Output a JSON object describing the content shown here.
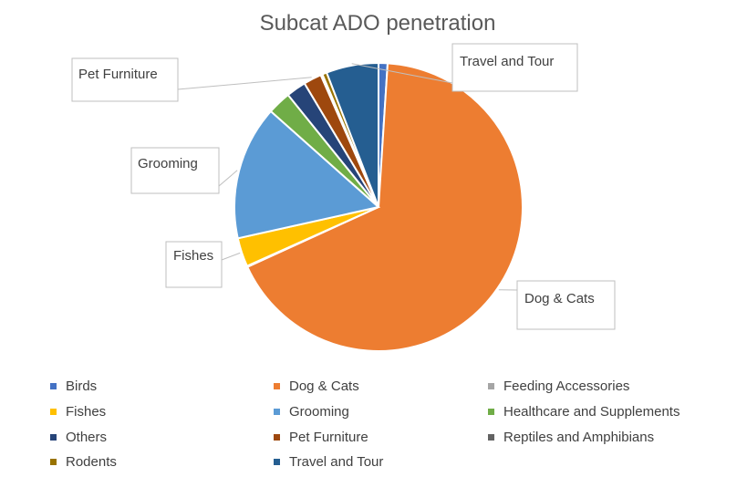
{
  "chart_data": {
    "type": "pie",
    "title": "Subcat ADO penetration",
    "slices": [
      {
        "label": "Birds",
        "value": 1.0,
        "color": "#4472C4"
      },
      {
        "label": "Dog & Cats",
        "value": 66.5,
        "color": "#ED7D31"
      },
      {
        "label": "Feeding Accessories",
        "value": 0.1,
        "color": "#A5A5A5"
      },
      {
        "label": "Fishes",
        "value": 3.2,
        "color": "#FFC000"
      },
      {
        "label": "Grooming",
        "value": 14.9,
        "color": "#5B9BD5"
      },
      {
        "label": "Healthcare and Supplements",
        "value": 2.6,
        "color": "#70AD47"
      },
      {
        "label": "Others",
        "value": 2.2,
        "color": "#264478"
      },
      {
        "label": "Pet Furniture",
        "value": 2.0,
        "color": "#9E480E"
      },
      {
        "label": "Reptiles and Amphibians",
        "value": 0.2,
        "color": "#636363"
      },
      {
        "label": "Rodents",
        "value": 0.5,
        "color": "#997300"
      },
      {
        "label": "Travel and Tour",
        "value": 5.8,
        "color": "#255E91"
      }
    ],
    "data_labels": [
      "Travel and Tour",
      "Pet Furniture",
      "Grooming",
      "Fishes",
      "Dog & Cats"
    ],
    "legend_position": "bottom"
  }
}
